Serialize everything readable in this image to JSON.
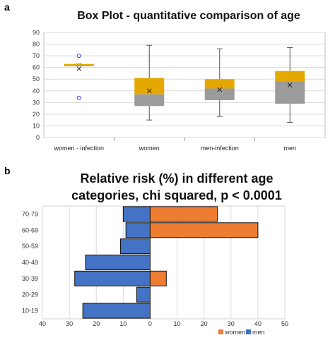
{
  "panel_a": {
    "label": "a",
    "title": "Box Plot - quantitative comparison of age"
  },
  "panel_b": {
    "label": "b",
    "title_line1": "Relative risk (%) in different age",
    "title_line2": "categories, chi squared, p < 0.0001"
  },
  "colors": {
    "upper_box": "#e5a800",
    "lower_box": "#9b9b9b",
    "women": "#ee7d31",
    "men": "#4472c4",
    "outlier": "#3333ff",
    "grid": "#d9d9d9"
  },
  "chart_data": [
    {
      "type": "box",
      "title": "Box Plot - quantitative comparison of age",
      "categories": [
        "women - infection",
        "women",
        "men-infection",
        "men"
      ],
      "ylim": [
        0,
        90
      ],
      "yticks": [
        0,
        10,
        20,
        30,
        40,
        50,
        60,
        70,
        80,
        90
      ],
      "grid": true,
      "boxes": [
        {
          "min": 62,
          "q1": 62,
          "median": 62,
          "q3": 63,
          "max": 63,
          "mean": 59,
          "outliers": [
            70,
            34
          ]
        },
        {
          "min": 15,
          "q1": 27,
          "median": 37,
          "q3": 51,
          "max": 79,
          "mean": 40,
          "outliers": []
        },
        {
          "min": 18,
          "q1": 32,
          "median": 42,
          "q3": 50,
          "max": 76,
          "mean": 41,
          "outliers": []
        },
        {
          "min": 13,
          "q1": 29,
          "median": 48,
          "q3": 57,
          "max": 77,
          "mean": 45,
          "outliers": []
        }
      ]
    },
    {
      "type": "bar",
      "orientation": "horizontal",
      "title": "Relative risk (%) in different age categories, chi squared, p < 0.0001",
      "categories": [
        "70-79",
        "60-69",
        "50-59",
        "40-49",
        "30-39",
        "20-29",
        "10-19"
      ],
      "xticks": [
        "40",
        "30",
        "20",
        "10",
        "0",
        "10",
        "20",
        "30",
        "40",
        "50"
      ],
      "xlim": [
        -40,
        50
      ],
      "grid": true,
      "legend_position": "bottom-right",
      "series": [
        {
          "name": "women",
          "values": [
            25,
            40,
            0,
            0,
            6,
            0,
            0
          ]
        },
        {
          "name": "men",
          "values": [
            10,
            9,
            11,
            24,
            28,
            5,
            25
          ]
        }
      ]
    }
  ]
}
